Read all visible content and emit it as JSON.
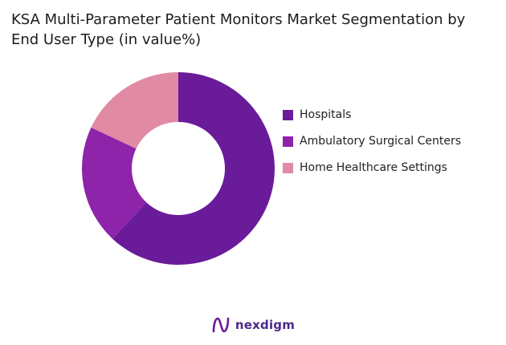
{
  "title_lines": [
    "KSA Multi-Parameter Patient Monitors Market Segmentation by",
    "End User Type (in value%)"
  ],
  "chart_data": {
    "type": "pie",
    "variant": "donut",
    "title": "KSA Multi-Parameter Patient Monitors Market Segmentation by End User Type (in value%)",
    "categories": [
      "Hospitals",
      "Ambulatory Surgical Centers",
      "Home Healthcare Settings"
    ],
    "values": [
      62,
      20,
      18
    ],
    "colors": [
      "#6a1b9a",
      "#8e24aa",
      "#e08aa3"
    ],
    "legend_position": "right"
  },
  "brand": {
    "name": "nexdigm",
    "logo_color": "#6a1b9a"
  }
}
